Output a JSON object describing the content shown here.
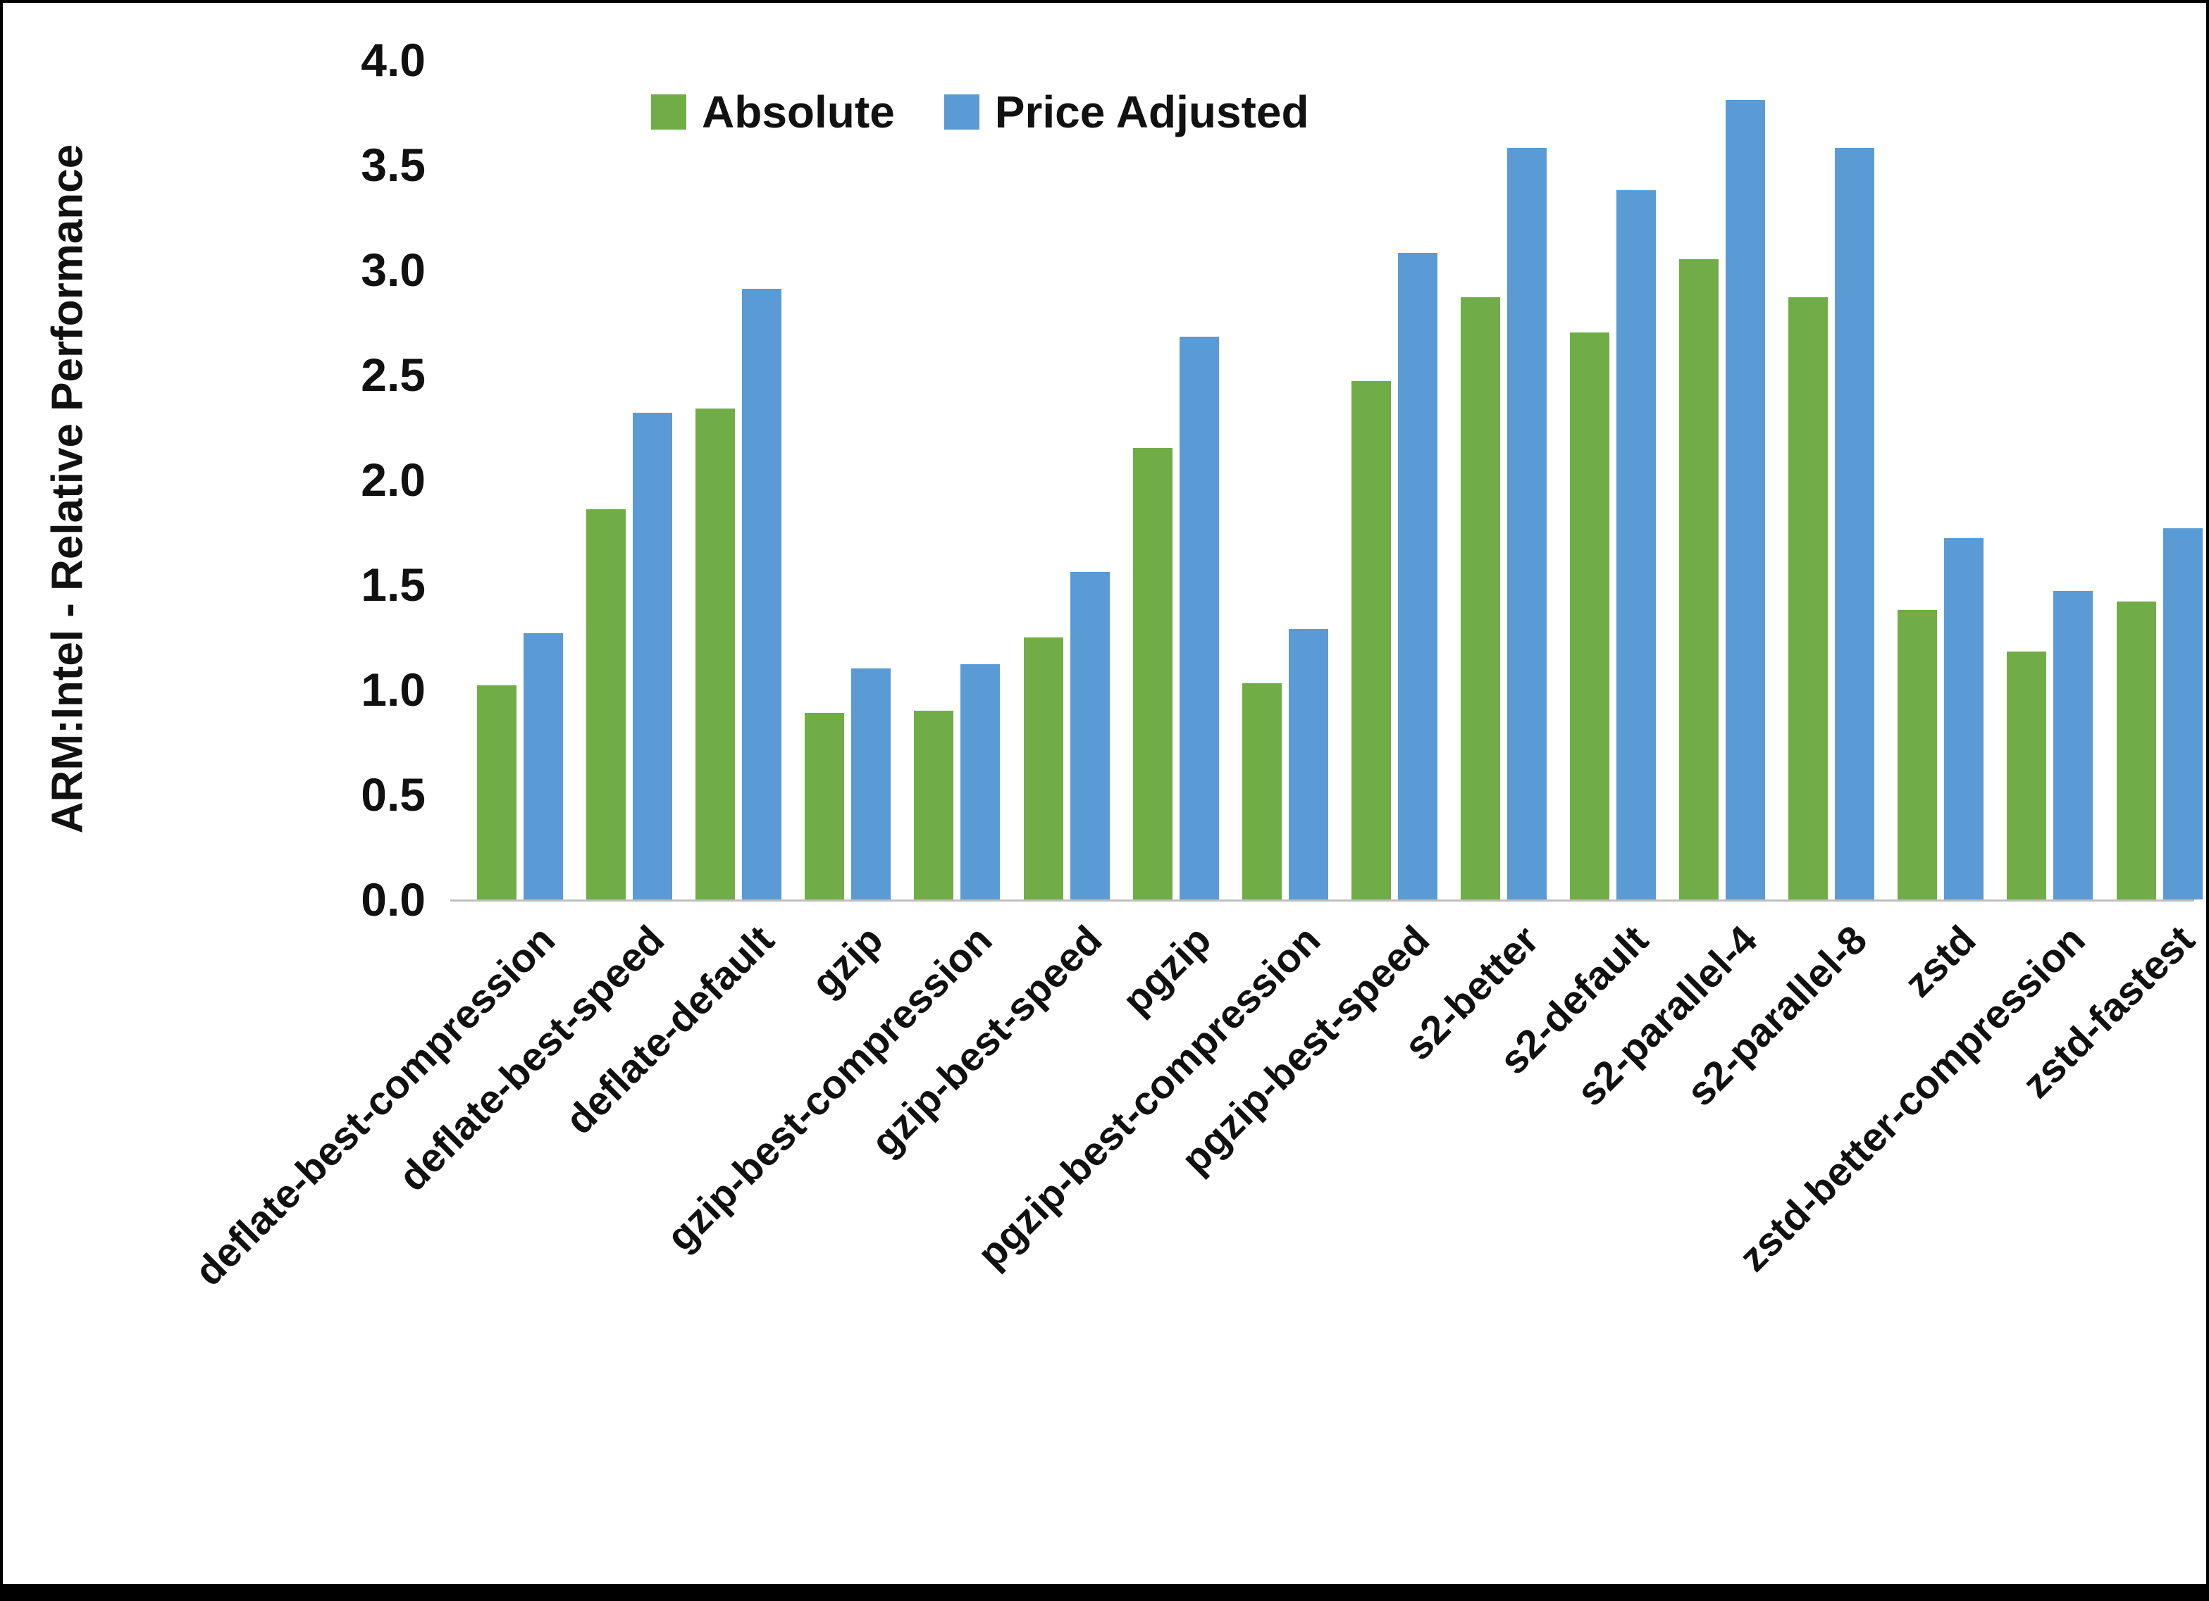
{
  "chart_data": {
    "type": "bar",
    "title": "",
    "xlabel": "",
    "ylabel": "ARM:Intel - Relative Performance",
    "ylim": [
      0.0,
      4.0
    ],
    "ytick_step": 0.5,
    "grid": false,
    "legend_position": "top-center",
    "categories": [
      "deflate-best-compression",
      "deflate-best-speed",
      "deflate-default",
      "gzip",
      "gzip-best-compression",
      "gzip-best-speed",
      "pgzip",
      "pgzip-best-compression",
      "pgzip-best-speed",
      "s2-better",
      "s2-default",
      "s2-parallel-4",
      "s2-parallel-8",
      "zstd",
      "zstd-better-compression",
      "zstd-fastest"
    ],
    "series": [
      {
        "name": "Absolute",
        "color": "#70AD47",
        "values": [
          1.02,
          1.86,
          2.34,
          0.89,
          0.9,
          1.25,
          2.15,
          1.03,
          2.47,
          2.87,
          2.7,
          3.05,
          2.87,
          1.38,
          1.18,
          1.42
        ]
      },
      {
        "name": "Price Adjusted",
        "color": "#5B9BD5",
        "values": [
          1.27,
          2.32,
          2.91,
          1.1,
          1.12,
          1.56,
          2.68,
          1.29,
          3.08,
          3.58,
          3.38,
          3.81,
          3.58,
          1.72,
          1.47,
          1.77
        ]
      }
    ]
  }
}
